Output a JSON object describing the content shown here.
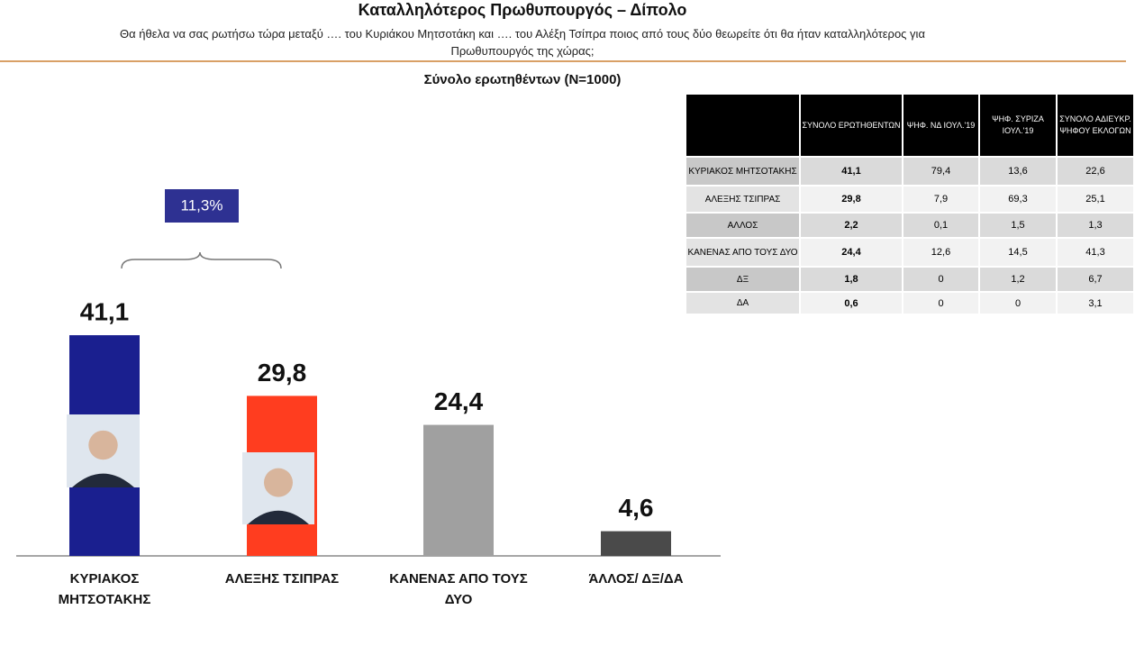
{
  "header": {
    "title": "Καταλληλότερος Πρωθυπουργός – Δίπολο",
    "question": "Θα ήθελα να σας ρωτήσω τώρα μεταξύ …. του Κυριάκου Μητσοτάκη και …. του  Αλέξη Τσίπρα ποιος από τους δύο θεωρείτε ότι θα ήταν καταλληλότερος για Πρωθυπουργός της χώρας;"
  },
  "chart_data": {
    "type": "bar",
    "subtitle": "Σύνολο ερωτηθέντων (N=1000)",
    "categories": [
      "ΚΥΡΙΑΚΟΣ ΜΗΤΣΟΤΑΚΗΣ",
      "ΑΛΕΞΗΣ ΤΣΙΠΡΑΣ",
      "ΚΑΝΕΝΑΣ ΑΠΟ ΤΟΥΣ ΔΥΟ",
      "ΆΛΛΟΣ/ ΔΞ/ΔΑ"
    ],
    "values": [
      41.1,
      29.8,
      24.4,
      4.6
    ],
    "value_labels": [
      "41,1",
      "29,8",
      "24,4",
      "4,6"
    ],
    "colors": [
      "#1a1f8f",
      "#ff3d1f",
      "#a0a0a0",
      "#4a4a4a"
    ],
    "annotation": "11,3%"
  },
  "table": {
    "columns": [
      "ΣΥΝΟΛΟ ΕΡΩΤΗΘΕΝΤΩΝ",
      "ΨΗΦ. ΝΔ ΙΟΥΛ.'19",
      "ΨΗΦ. ΣΥΡΙΖΑ ΙΟΥΛ.'19",
      "ΣΥΝΟΛΟ ΑΔΙΕΥΚΡ. ΨΗΦΟΥ ΕΚΛΟΓΩΝ"
    ],
    "rows": [
      [
        "ΚΥΡΙΑΚΟΣ ΜΗΤΣΟΤΑΚΗΣ",
        "41,1",
        "79,4",
        "13,6",
        "22,6"
      ],
      [
        "ΑΛΕΞΗΣ ΤΣΙΠΡΑΣ",
        "29,8",
        "7,9",
        "69,3",
        "25,1"
      ],
      [
        "ΑΛΛΟΣ",
        "2,2",
        "0,1",
        "1,5",
        "1,3"
      ],
      [
        "ΚΑΝΕΝΑΣ ΑΠΟ ΤΟΥΣ ΔΥΟ",
        "24,4",
        "12,6",
        "14,5",
        "41,3"
      ],
      [
        "ΔΞ",
        "1,8",
        "0",
        "1,2",
        "6,7"
      ],
      [
        "ΔΑ",
        "0,6",
        "0",
        "0",
        "3,1"
      ]
    ]
  }
}
